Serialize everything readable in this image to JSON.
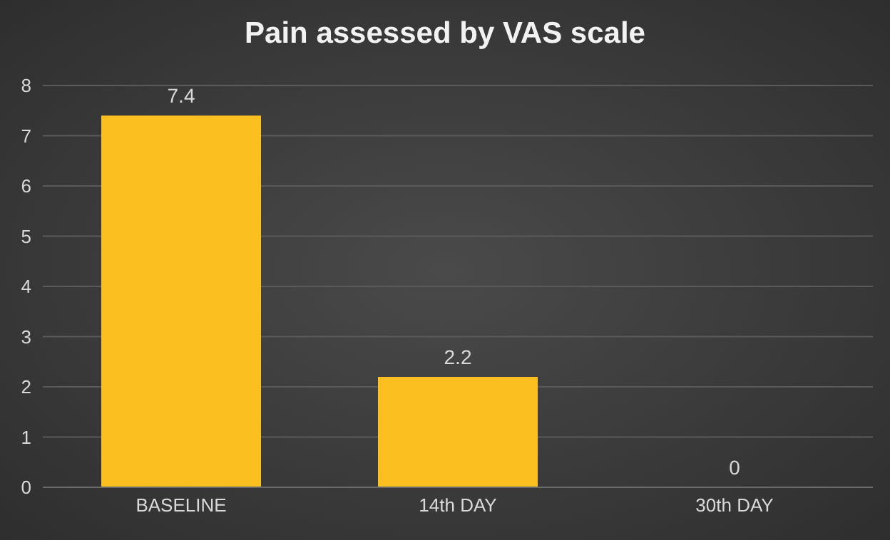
{
  "chart_data": {
    "type": "bar",
    "title": "Pain assessed by VAS scale",
    "categories": [
      "BASELINE",
      "14th DAY",
      "30th DAY"
    ],
    "values": [
      7.4,
      2.2,
      0
    ],
    "color": "#fbbf1f",
    "ylim": [
      0,
      8
    ],
    "yticks": [
      0,
      1,
      2,
      3,
      4,
      5,
      6,
      7,
      8
    ],
    "grid": "y",
    "data_labels": true
  }
}
